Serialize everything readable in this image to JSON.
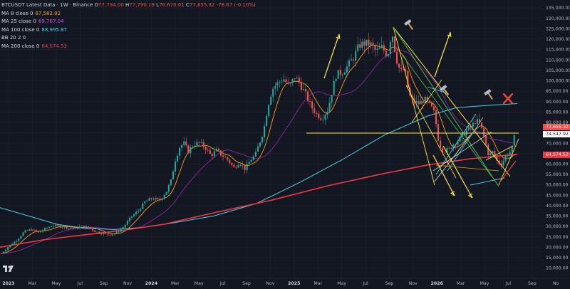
{
  "header": {
    "symbol_title": "BTCUSDT Latest Data · 1W · Binance",
    "ohlc": {
      "open_label": "O",
      "open": "77,734.00",
      "high_label": "H",
      "high": "77,790.19",
      "low_label": "L",
      "low": "76,670.01",
      "close_label": "C",
      "close": "77,655.32",
      "change": "-78.67 (-0.10%)"
    }
  },
  "indicators": [
    {
      "label": "MA 8 close 0",
      "value": "67,582.92",
      "color": "#f7a21b"
    },
    {
      "label": "MA 25 close 0",
      "value": "69,767.04",
      "color": "#e040fb"
    },
    {
      "label": "MA 100 close 0",
      "value": "88,995.87",
      "color": "#4dd0e1"
    },
    {
      "label": "BB 20 2 0",
      "value": "",
      "color": "#2196f3"
    },
    {
      "label": "MA 200 close 0",
      "value": "64,574.53",
      "color": "#f23645"
    }
  ],
  "price_tags": [
    {
      "value": "77,655.32",
      "bg": "#ef5350",
      "fg": "#ffffff"
    },
    {
      "value": "74,547.92",
      "bg": "#ffffff",
      "fg": "#131722"
    },
    {
      "value": "64,574.53",
      "bg": "#f23645",
      "fg": "#ffffff"
    }
  ],
  "axis_y": {
    "ticks": [
      "135,000.00",
      "130,000.00",
      "125,000.00",
      "120,000.00",
      "115,000.00",
      "110,000.00",
      "105,000.00",
      "100,000.00",
      "95,000.00",
      "90,000.00",
      "85,000.00",
      "80,000.00",
      "75,000.00",
      "70,000.00",
      "65,000.00",
      "60,000.00",
      "55,000.00",
      "50,000.00",
      "45,000.00",
      "40,000.00",
      "35,000.00",
      "30,000.00",
      "25,000.00",
      "20,000.00",
      "15,000.00",
      "10,000.00"
    ]
  },
  "axis_x": {
    "ticks": [
      {
        "label": "2023",
        "year": true
      },
      {
        "label": "Mar",
        "year": false
      },
      {
        "label": "May",
        "year": false
      },
      {
        "label": "Jul",
        "year": false
      },
      {
        "label": "Sep",
        "year": false
      },
      {
        "label": "Nov",
        "year": false
      },
      {
        "label": "2024",
        "year": true
      },
      {
        "label": "Mar",
        "year": false
      },
      {
        "label": "May",
        "year": false
      },
      {
        "label": "Jul",
        "year": false
      },
      {
        "label": "Sep",
        "year": false
      },
      {
        "label": "Nov",
        "year": false
      },
      {
        "label": "2025",
        "year": true
      },
      {
        "label": "Mar",
        "year": false
      },
      {
        "label": "May",
        "year": false
      },
      {
        "label": "Jul",
        "year": false
      },
      {
        "label": "Sep",
        "year": false
      },
      {
        "label": "Nov",
        "year": false
      },
      {
        "label": "2026",
        "year": true
      },
      {
        "label": "Mar",
        "year": false
      },
      {
        "label": "May",
        "year": false
      },
      {
        "label": "Jul",
        "year": false
      },
      {
        "label": "Sep",
        "year": false
      },
      {
        "label": "No",
        "year": false
      }
    ]
  },
  "colors": {
    "background": "#131722",
    "grid": "#1f2330",
    "up_candle": "#26a69a",
    "down_candle": "#ef5350",
    "ma8": "#f7a21b",
    "ma25": "#9c27b0",
    "ma100": "#4dd0e1",
    "ma200": "#f23645",
    "drawing_yellow": "#ffeb3b",
    "cross_mark": "#f44336"
  },
  "icons": {
    "tool_markers": [
      "hammer-icon",
      "hammer-icon",
      "hammer-icon",
      "cross-icon"
    ],
    "logo": "tradingview-logo"
  }
}
